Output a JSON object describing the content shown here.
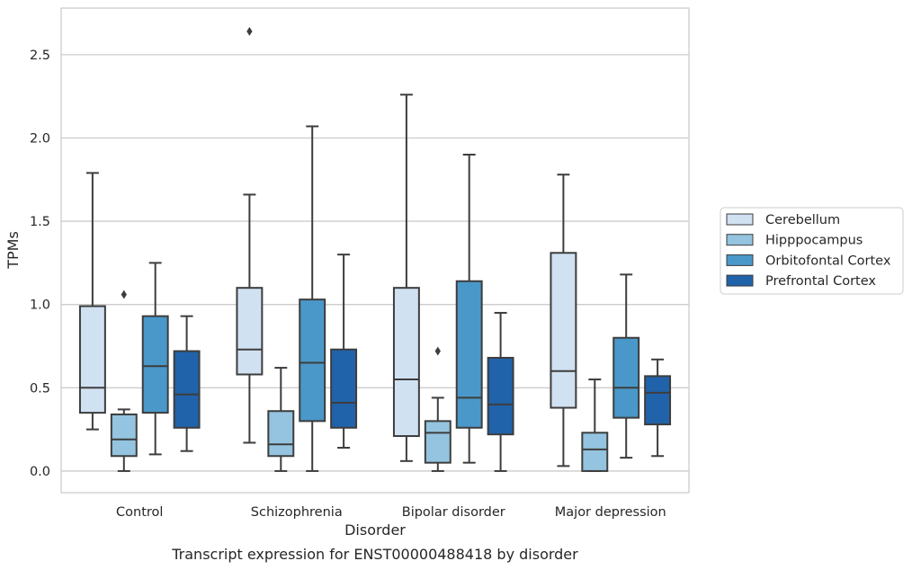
{
  "chart_data": {
    "type": "box",
    "xlabel": "Disorder",
    "ylabel": "TPMs",
    "caption": "Transcript expression for ENST00000488418 by disorder",
    "categories": [
      "Control",
      "Schizophrenia",
      "Bipolar disorder",
      "Major depression"
    ],
    "ylim": [
      -0.13,
      2.78
    ],
    "yticks": [
      0.0,
      0.5,
      1.0,
      1.5,
      2.0,
      2.5
    ],
    "ytick_labels": [
      "0.0",
      "0.5",
      "1.0",
      "1.5",
      "2.0",
      "2.5"
    ],
    "grid": "horizontal",
    "legend_position": "right",
    "series": [
      {
        "name": "Cerebellum",
        "color": "#d0e1f2",
        "boxes": [
          {
            "whislo": 0.25,
            "q1": 0.35,
            "med": 0.5,
            "q3": 0.99,
            "whishi": 1.79,
            "fliers": []
          },
          {
            "whislo": 0.17,
            "q1": 0.58,
            "med": 0.73,
            "q3": 1.1,
            "whishi": 1.66,
            "fliers": [
              2.64
            ]
          },
          {
            "whislo": 0.06,
            "q1": 0.21,
            "med": 0.55,
            "q3": 1.1,
            "whishi": 2.26,
            "fliers": []
          },
          {
            "whislo": 0.03,
            "q1": 0.38,
            "med": 0.6,
            "q3": 1.31,
            "whishi": 1.78,
            "fliers": []
          }
        ]
      },
      {
        "name": "Hipppocampus",
        "color": "#94c4df",
        "boxes": [
          {
            "whislo": 0.0,
            "q1": 0.09,
            "med": 0.19,
            "q3": 0.34,
            "whishi": 0.37,
            "fliers": [
              1.06
            ]
          },
          {
            "whislo": 0.0,
            "q1": 0.09,
            "med": 0.16,
            "q3": 0.36,
            "whishi": 0.62,
            "fliers": []
          },
          {
            "whislo": 0.0,
            "q1": 0.05,
            "med": 0.23,
            "q3": 0.3,
            "whishi": 0.44,
            "fliers": [
              0.72
            ]
          },
          {
            "whislo": 0.0,
            "q1": 0.0,
            "med": 0.13,
            "q3": 0.23,
            "whishi": 0.55,
            "fliers": []
          }
        ]
      },
      {
        "name": "Orbitofontal Cortex",
        "color": "#4a98c9",
        "boxes": [
          {
            "whislo": 0.1,
            "q1": 0.35,
            "med": 0.63,
            "q3": 0.93,
            "whishi": 1.25,
            "fliers": []
          },
          {
            "whislo": 0.0,
            "q1": 0.3,
            "med": 0.65,
            "q3": 1.03,
            "whishi": 2.07,
            "fliers": []
          },
          {
            "whislo": 0.05,
            "q1": 0.26,
            "med": 0.44,
            "q3": 1.14,
            "whishi": 1.9,
            "fliers": []
          },
          {
            "whislo": 0.08,
            "q1": 0.32,
            "med": 0.5,
            "q3": 0.8,
            "whishi": 1.18,
            "fliers": []
          }
        ]
      },
      {
        "name": "Prefrontal Cortex",
        "color": "#2163aa",
        "boxes": [
          {
            "whislo": 0.12,
            "q1": 0.26,
            "med": 0.46,
            "q3": 0.72,
            "whishi": 0.93,
            "fliers": []
          },
          {
            "whislo": 0.14,
            "q1": 0.26,
            "med": 0.41,
            "q3": 0.73,
            "whishi": 1.3,
            "fliers": []
          },
          {
            "whislo": 0.0,
            "q1": 0.22,
            "med": 0.4,
            "q3": 0.68,
            "whishi": 0.95,
            "fliers": []
          },
          {
            "whislo": 0.09,
            "q1": 0.28,
            "med": 0.47,
            "q3": 0.57,
            "whishi": 0.67,
            "fliers": []
          }
        ]
      }
    ]
  }
}
